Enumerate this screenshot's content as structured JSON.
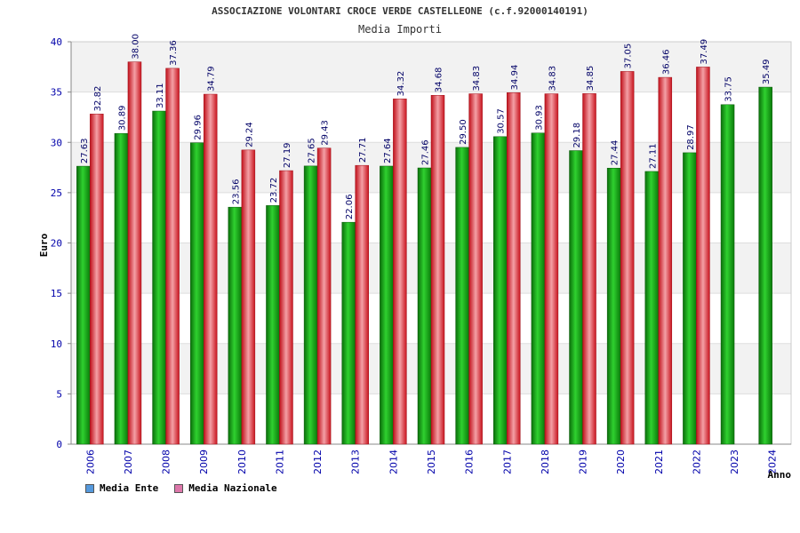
{
  "chart_data": {
    "type": "bar",
    "title": "ASSOCIAZIONE VOLONTARI CROCE VERDE CASTELLEONE (c.f.92000140191)",
    "subtitle": "Media Importi",
    "xlabel": "Anno",
    "ylabel": "Euro",
    "ylim": [
      0,
      40
    ],
    "yticks": [
      0,
      5,
      10,
      15,
      20,
      25,
      30,
      35,
      40
    ],
    "categories": [
      "2006",
      "2007",
      "2008",
      "2009",
      "2010",
      "2011",
      "2012",
      "2013",
      "2014",
      "2015",
      "2016",
      "2017",
      "2018",
      "2019",
      "2020",
      "2021",
      "2022",
      "2023",
      "2024"
    ],
    "series": [
      {
        "name": "Media Ente",
        "color": "#1aa01a",
        "values": [
          27.63,
          30.89,
          33.11,
          29.96,
          23.56,
          23.72,
          27.65,
          22.06,
          27.64,
          27.46,
          29.5,
          30.57,
          30.93,
          29.18,
          27.44,
          27.11,
          28.97,
          33.75,
          35.49
        ],
        "labels": [
          "27.63",
          "30.89",
          "33.11",
          "29.96",
          "23.56",
          "23.72",
          "27.65",
          "22.06",
          "27.64",
          "27.46",
          "29.50",
          "30.57",
          "30.93",
          "29.18",
          "27.44",
          "27.11",
          "28.97",
          "33.75",
          "35.49"
        ]
      },
      {
        "name": "Media Nazionale",
        "color": "#e0202a",
        "values": [
          32.82,
          38.0,
          37.36,
          34.79,
          29.24,
          27.19,
          29.43,
          27.71,
          34.32,
          34.68,
          34.83,
          34.94,
          34.83,
          34.85,
          37.05,
          36.46,
          37.49,
          null,
          null
        ],
        "labels": [
          "32.82",
          "38.00",
          "37.36",
          "34.79",
          "29.24",
          "27.19",
          "29.43",
          "27.71",
          "34.32",
          "34.68",
          "34.83",
          "34.94",
          "34.83",
          "34.85",
          "37.05",
          "36.46",
          "37.49",
          "",
          ""
        ]
      }
    ],
    "legend": [
      {
        "name": "Media Ente",
        "color": "#5599dd"
      },
      {
        "name": "Media Nazionale",
        "color": "#dd77aa"
      }
    ],
    "legend_position": "bottom-left"
  }
}
